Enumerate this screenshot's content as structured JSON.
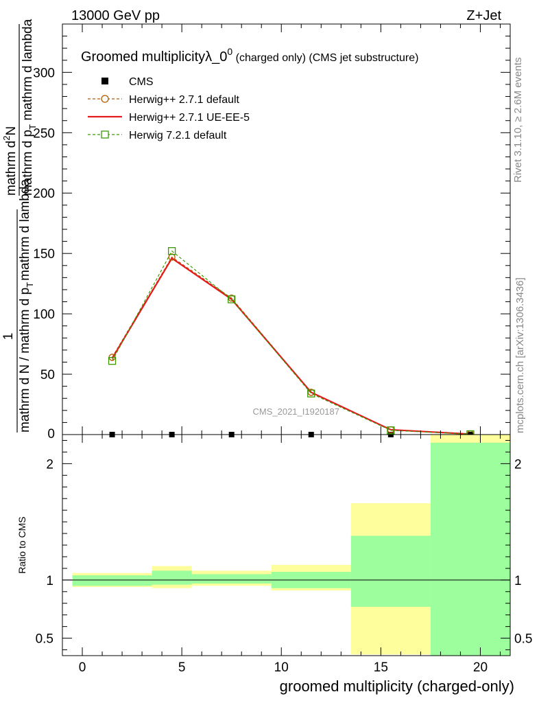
{
  "header": {
    "energy": "13000 GeV pp",
    "process": "Z+Jet"
  },
  "side": {
    "rivet": "Rivet 3.1.10, ≥ 2.6M events",
    "mcplots": "mcplots.cern.ch [arXiv:1306.3436]"
  },
  "chart_data": {
    "type": "line",
    "title": "Groomed multiplicityλ_0",
    "title_sup": "0",
    "title_suffix": " (charged only) (CMS jet substructure)",
    "analysis_label": "CMS_2021_I1920187",
    "xlabel": "groomed multiplicity (charged-only)",
    "ylabel_main": {
      "numerator_top": "1",
      "denominator_top": "mathrm d N / mathrm d p",
      "denominator_sub": "T",
      "denominator_tail": "mathrm d lambda",
      "numerator": "mathrm d",
      "numerator_sup": "2",
      "numerator_tail": "N",
      "denominator": "mathrm d p",
      "den_sub": "T",
      "den_tail": " mathrm d lambda"
    },
    "ylabel_ratio": "Ratio to CMS",
    "xlim": [
      -1,
      21.5
    ],
    "ylim_main": [
      0,
      340
    ],
    "ylim_ratio": [
      0.35,
      2.25
    ],
    "x_ticks": [
      0,
      5,
      10,
      15,
      20
    ],
    "y_ticks_main": [
      50,
      100,
      150,
      200,
      250,
      300
    ],
    "y_ticks_main_zero": "0",
    "y_ticks_ratio": [
      0.5,
      1,
      2
    ],
    "x": [
      1.5,
      4.5,
      7.5,
      11.5,
      15.5,
      19.5
    ],
    "bin_edges": [
      -0.5,
      3.5,
      5.5,
      9.5,
      13.5,
      17.5,
      21.5
    ],
    "series": [
      {
        "name": "CMS",
        "style": "data",
        "values": [
          0,
          0,
          0,
          0,
          0,
          0
        ]
      },
      {
        "name": "Herwig++ 2.7.1 default",
        "style": "circle-dashed",
        "color": "#b35900",
        "values": [
          64,
          147,
          113,
          35,
          4,
          0.5
        ]
      },
      {
        "name": "Herwig++ 2.7.1 UE-EE-5",
        "style": "solid",
        "color": "#e41a1c",
        "values": [
          63,
          146,
          112,
          35,
          4,
          0.4
        ]
      },
      {
        "name": "Herwig 7.2.1 default",
        "style": "square-dashed",
        "color": "#3a9a00",
        "values": [
          61,
          152,
          112,
          34,
          3.5,
          0.3
        ]
      }
    ],
    "ratio_bands": {
      "stat": [
        [
          0.95,
          1.04
        ],
        [
          0.96,
          1.08
        ],
        [
          0.97,
          1.05
        ],
        [
          0.93,
          1.07
        ],
        [
          0.77,
          1.38
        ],
        [
          0.35,
          2.18
        ]
      ],
      "total": [
        [
          0.94,
          1.06
        ],
        [
          0.93,
          1.12
        ],
        [
          0.95,
          1.08
        ],
        [
          0.91,
          1.13
        ],
        [
          0.36,
          1.66
        ],
        [
          0.35,
          2.25
        ]
      ]
    },
    "colors": {
      "stat": "#9cfe9c",
      "total": "#fefe9c"
    }
  }
}
